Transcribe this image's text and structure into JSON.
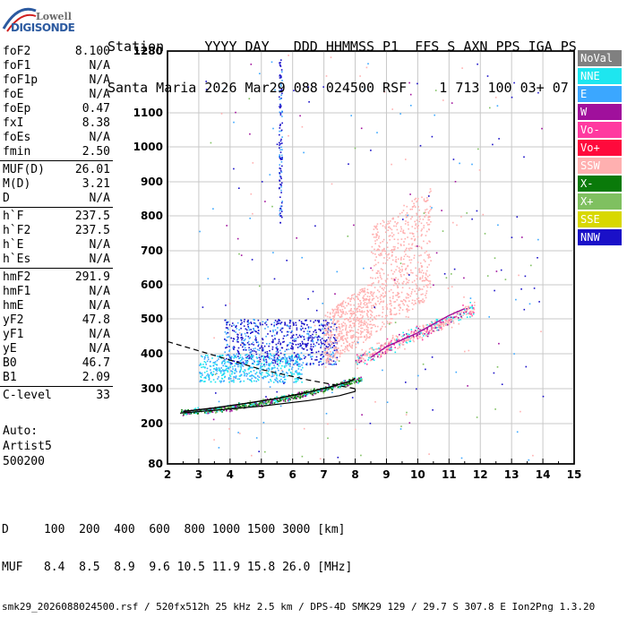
{
  "logo": {
    "line1": "Lowell",
    "line2": "DIGISONDE"
  },
  "header": {
    "line1": "Station     YYYY DAY   DDD HHMMSS P1  FFS S AXN PPS IGA PS",
    "line2": "Santa Maria 2026 Mar29 088 024500 RSF    1 713 100 03+ 07"
  },
  "params": [
    {
      "k": "foF2",
      "v": "8.100"
    },
    {
      "k": "foF1",
      "v": "N/A"
    },
    {
      "k": "foF1p",
      "v": "N/A"
    },
    {
      "k": "foE",
      "v": "N/A"
    },
    {
      "k": "foEp",
      "v": "0.47"
    },
    {
      "k": "fxI",
      "v": "8.38"
    },
    {
      "k": "foEs",
      "v": "N/A"
    },
    {
      "k": "fmin",
      "v": "2.50"
    },
    {
      "sep": true
    },
    {
      "k": "MUF(D)",
      "v": "26.01"
    },
    {
      "k": "M(D)",
      "v": "3.21"
    },
    {
      "k": "D",
      "v": "N/A"
    },
    {
      "sep": true
    },
    {
      "k": "h`F",
      "v": "237.5"
    },
    {
      "k": "h`F2",
      "v": "237.5"
    },
    {
      "k": "h`E",
      "v": "N/A"
    },
    {
      "k": "h`Es",
      "v": "N/A"
    },
    {
      "sep": true
    },
    {
      "k": "hmF2",
      "v": "291.9"
    },
    {
      "k": "hmF1",
      "v": "N/A"
    },
    {
      "k": "hmE",
      "v": "N/A"
    },
    {
      "k": "yF2",
      "v": "47.8"
    },
    {
      "k": "yF1",
      "v": "N/A"
    },
    {
      "k": "yE",
      "v": "N/A"
    },
    {
      "k": "B0",
      "v": "46.7"
    },
    {
      "k": "B1",
      "v": "2.09"
    },
    {
      "sep": true
    },
    {
      "k": "C-level",
      "v": "33"
    }
  ],
  "auto": {
    "line1": "Auto:",
    "line2": "Artist5",
    "line3": "500200"
  },
  "legend": [
    {
      "label": "NoVal",
      "color": "#808080"
    },
    {
      "label": "NNE",
      "color": "#1ee6ef"
    },
    {
      "label": "E",
      "color": "#3ba7ff"
    },
    {
      "label": "W",
      "color": "#a0109c"
    },
    {
      "label": "Vo-",
      "color": "#ff3aa0"
    },
    {
      "label": "Vo+",
      "color": "#ff0a3c"
    },
    {
      "label": "SSW",
      "color": "#ffb0b0"
    },
    {
      "label": "X-",
      "color": "#0a7a0a"
    },
    {
      "label": "X+",
      "color": "#7fc060"
    },
    {
      "label": "SSE",
      "color": "#d8d800"
    },
    {
      "label": "NNW",
      "color": "#1a10c8"
    }
  ],
  "footer": {
    "line1": "D     100  200  400  600  800 1000 1500 3000 [km]",
    "line2": "MUF   8.4  8.5  8.9  9.6 10.5 11.9 15.8 26.0 [MHz]",
    "line3": "smk29_2026088024500.rsf / 520fx512h 25 kHz 2.5 km / DPS-4D SMK29 129 / 29.7 S 307.8 E Ion2Png 1.3.20"
  },
  "chart_data": {
    "type": "scatter",
    "title": "",
    "xlabel": "",
    "ylabel": "",
    "xlim": [
      2,
      15
    ],
    "ylim": [
      80,
      1280
    ],
    "x_ticks": [
      "2",
      "3",
      "4",
      "5",
      "6",
      "7",
      "8",
      "9",
      "10",
      "11",
      "12",
      "13",
      "14",
      "15"
    ],
    "y_ticks": [
      "80",
      "200",
      "300",
      "400",
      "500",
      "600",
      "700",
      "800",
      "900",
      "1000",
      "1100",
      "1280"
    ],
    "grid": true,
    "trace_O": [
      [
        2.5,
        235
      ],
      [
        3.5,
        245
      ],
      [
        4.5,
        258
      ],
      [
        5.5,
        272
      ],
      [
        6.5,
        290
      ],
      [
        7.2,
        305
      ],
      [
        7.8,
        320
      ],
      [
        8.0,
        330
      ]
    ],
    "trace_X": [
      [
        8.5,
        390
      ],
      [
        9.0,
        420
      ],
      [
        9.5,
        440
      ],
      [
        10.0,
        460
      ],
      [
        10.5,
        485
      ],
      [
        11.0,
        510
      ],
      [
        11.5,
        530
      ]
    ],
    "profile_curve": [
      [
        2.4,
        230
      ],
      [
        3.5,
        238
      ],
      [
        5.0,
        250
      ],
      [
        6.5,
        266
      ],
      [
        7.5,
        280
      ],
      [
        8.0,
        292
      ],
      [
        8.0,
        300
      ],
      [
        7.4,
        310
      ],
      [
        6.5,
        325
      ],
      [
        5.0,
        355
      ],
      [
        3.5,
        395
      ],
      [
        2.0,
        435
      ]
    ]
  }
}
